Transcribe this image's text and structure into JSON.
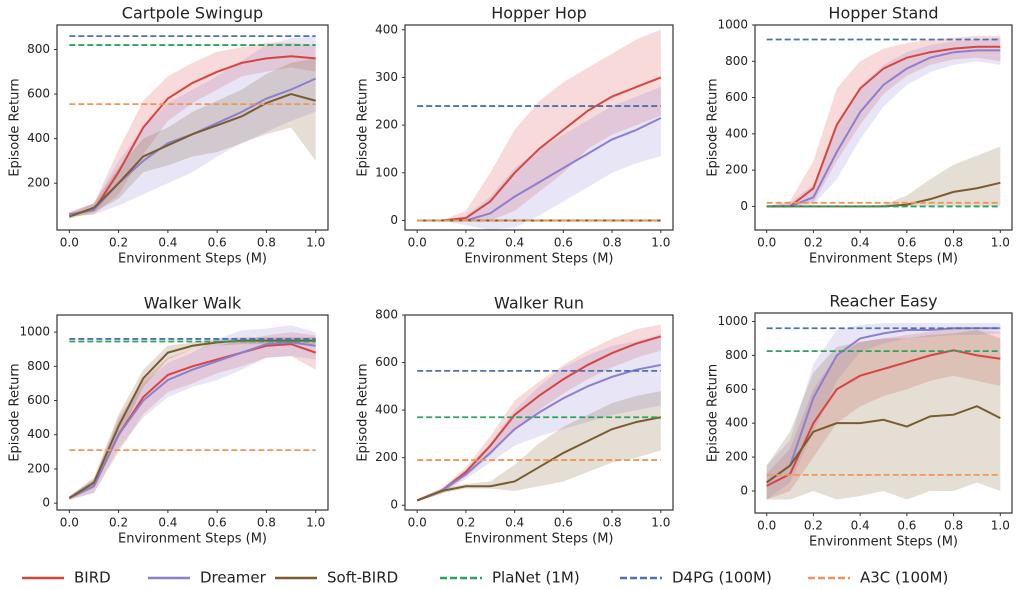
{
  "chart_data": [
    {
      "type": "line",
      "title": "Cartpole Swingup",
      "xlabel": "Environment Steps (M)",
      "ylabel": "Episode Return",
      "x": [
        0,
        0.1,
        0.2,
        0.3,
        0.4,
        0.5,
        0.6,
        0.7,
        0.8,
        0.9,
        1.0
      ],
      "xlim": [
        -0.05,
        1.05
      ],
      "ylim": [
        -10,
        910
      ],
      "xticks": [
        {
          "value": 0,
          "label": "0.0"
        },
        0.2,
        0.4,
        0.6,
        0.8,
        {
          "value": 1,
          "label": "1.0"
        }
      ],
      "yticks": [
        200,
        400,
        600,
        800
      ],
      "series": [
        {
          "values": [
            60,
            80,
            250,
            450,
            580,
            650,
            700,
            740,
            760,
            770,
            760
          ],
          "lower": [
            50,
            60,
            150,
            330,
            480,
            560,
            620,
            680,
            700,
            720,
            700
          ],
          "upper": [
            70,
            110,
            350,
            570,
            680,
            740,
            790,
            810,
            830,
            830,
            820
          ]
        },
        {
          "values": [
            60,
            80,
            200,
            300,
            380,
            420,
            470,
            520,
            580,
            620,
            670
          ],
          "lower": [
            50,
            60,
            100,
            150,
            200,
            250,
            320,
            380,
            430,
            480,
            520
          ],
          "upper": [
            70,
            110,
            300,
            450,
            560,
            620,
            680,
            750,
            820,
            850,
            860
          ]
        },
        {
          "values": [
            50,
            90,
            200,
            320,
            370,
            420,
            460,
            500,
            560,
            600,
            570
          ],
          "lower": [
            40,
            70,
            130,
            250,
            280,
            320,
            340,
            380,
            420,
            450,
            300
          ],
          "upper": [
            60,
            110,
            270,
            400,
            450,
            520,
            570,
            620,
            690,
            740,
            760
          ]
        }
      ],
      "reference_lines": [
        820,
        860,
        555
      ]
    },
    {
      "type": "line",
      "title": "Hopper Hop",
      "xlabel": "Environment Steps (M)",
      "ylabel": "Episode Return",
      "x": [
        0,
        0.1,
        0.2,
        0.3,
        0.4,
        0.5,
        0.6,
        0.7,
        0.8,
        0.9,
        1.0
      ],
      "xlim": [
        -0.05,
        1.05
      ],
      "ylim": [
        -20,
        410
      ],
      "xticks": [
        {
          "value": 0,
          "label": "0.0"
        },
        0.2,
        0.4,
        0.6,
        0.8,
        {
          "value": 1,
          "label": "1.0"
        }
      ],
      "yticks": [
        0,
        100,
        200,
        300,
        400
      ],
      "series": [
        {
          "values": [
            0,
            0,
            5,
            40,
            100,
            150,
            190,
            230,
            260,
            280,
            300
          ],
          "lower": [
            0,
            0,
            0,
            0,
            20,
            60,
            100,
            150,
            180,
            200,
            220
          ],
          "upper": [
            0,
            0,
            20,
            100,
            190,
            250,
            290,
            320,
            350,
            380,
            400
          ]
        },
        {
          "values": [
            0,
            0,
            0,
            15,
            50,
            80,
            110,
            140,
            170,
            190,
            215
          ],
          "lower": [
            0,
            0,
            -10,
            -20,
            -15,
            10,
            40,
            70,
            100,
            120,
            135
          ],
          "upper": [
            0,
            0,
            10,
            50,
            110,
            150,
            180,
            210,
            240,
            260,
            280
          ]
        },
        {
          "values": [
            0,
            0,
            0,
            0,
            0,
            0,
            0,
            0,
            0,
            0,
            0
          ],
          "lower": [
            0,
            0,
            0,
            0,
            0,
            0,
            0,
            0,
            0,
            0,
            0
          ],
          "upper": [
            0,
            0,
            0,
            0,
            0,
            0,
            0,
            0,
            0,
            0,
            0
          ]
        }
      ],
      "reference_lines": [
        0,
        240,
        0
      ]
    },
    {
      "type": "line",
      "title": "Hopper Stand",
      "xlabel": "Environment Steps (M)",
      "ylabel": "Episode Return",
      "x": [
        0,
        0.1,
        0.2,
        0.3,
        0.4,
        0.5,
        0.6,
        0.7,
        0.8,
        0.9,
        1.0
      ],
      "xlim": [
        -0.05,
        1.05
      ],
      "ylim": [
        -130,
        1000
      ],
      "xticks": [
        {
          "value": 0,
          "label": "0.0"
        },
        0.2,
        0.4,
        0.6,
        0.8,
        {
          "value": 1,
          "label": "1.0"
        }
      ],
      "yticks": [
        0,
        200,
        400,
        600,
        800,
        1000
      ],
      "series": [
        {
          "values": [
            0,
            0,
            100,
            450,
            650,
            760,
            820,
            850,
            870,
            880,
            880
          ],
          "lower": [
            0,
            0,
            20,
            250,
            450,
            620,
            720,
            780,
            810,
            820,
            800
          ],
          "upper": [
            0,
            30,
            250,
            650,
            800,
            870,
            900,
            920,
            930,
            940,
            940
          ]
        },
        {
          "values": [
            0,
            0,
            50,
            300,
            520,
            670,
            760,
            820,
            850,
            860,
            860
          ],
          "lower": [
            0,
            0,
            10,
            150,
            370,
            550,
            670,
            740,
            780,
            800,
            780
          ],
          "upper": [
            0,
            20,
            120,
            450,
            660,
            780,
            850,
            890,
            910,
            920,
            930
          ]
        },
        {
          "values": [
            0,
            0,
            0,
            0,
            0,
            0,
            10,
            40,
            80,
            100,
            130
          ],
          "lower": [
            0,
            0,
            0,
            0,
            0,
            0,
            0,
            0,
            0,
            0,
            0
          ],
          "upper": [
            0,
            0,
            0,
            0,
            0,
            10,
            60,
            150,
            230,
            280,
            330
          ]
        }
      ],
      "reference_lines": [
        0,
        920,
        20
      ]
    },
    {
      "type": "line",
      "title": "Walker Walk",
      "xlabel": "Environment Steps (M)",
      "ylabel": "Episode Return",
      "x": [
        0,
        0.1,
        0.2,
        0.3,
        0.4,
        0.5,
        0.6,
        0.7,
        0.8,
        0.9,
        1.0
      ],
      "xlim": [
        -0.05,
        1.05
      ],
      "ylim": [
        -40,
        1100
      ],
      "xticks": [
        {
          "value": 0,
          "label": "0.0"
        },
        0.2,
        0.4,
        0.6,
        0.8,
        {
          "value": 1,
          "label": "1.0"
        }
      ],
      "yticks": [
        0,
        200,
        400,
        600,
        800,
        1000
      ],
      "series": [
        {
          "values": [
            30,
            100,
            400,
            620,
            750,
            800,
            840,
            880,
            920,
            930,
            880
          ],
          "lower": [
            20,
            60,
            300,
            520,
            650,
            700,
            760,
            800,
            850,
            860,
            780
          ],
          "upper": [
            40,
            140,
            500,
            720,
            850,
            900,
            920,
            950,
            980,
            1000,
            980
          ]
        },
        {
          "values": [
            30,
            100,
            400,
            600,
            720,
            780,
            830,
            880,
            930,
            940,
            920
          ],
          "lower": [
            20,
            60,
            320,
            500,
            620,
            680,
            720,
            780,
            850,
            860,
            840
          ],
          "upper": [
            40,
            140,
            480,
            700,
            820,
            880,
            960,
            1010,
            1020,
            1040,
            1000
          ]
        },
        {
          "values": [
            30,
            120,
            450,
            730,
            880,
            920,
            940,
            950,
            950,
            950,
            950
          ],
          "lower": [
            20,
            90,
            380,
            680,
            840,
            900,
            920,
            930,
            930,
            930,
            930
          ],
          "upper": [
            40,
            150,
            520,
            780,
            920,
            940,
            960,
            970,
            970,
            970,
            970
          ]
        }
      ],
      "reference_lines": [
        945,
        960,
        310
      ]
    },
    {
      "type": "line",
      "title": "Walker Run",
      "xlabel": "Environment Steps (M)",
      "ylabel": "Episode Return",
      "x": [
        0,
        0.1,
        0.2,
        0.3,
        0.4,
        0.5,
        0.6,
        0.7,
        0.8,
        0.9,
        1.0
      ],
      "xlim": [
        -0.05,
        1.05
      ],
      "ylim": [
        -20,
        800
      ],
      "xticks": [
        {
          "value": 0,
          "label": "0.0"
        },
        0.2,
        0.4,
        0.6,
        0.8,
        {
          "value": 1,
          "label": "1.0"
        }
      ],
      "yticks": [
        0,
        200,
        400,
        600,
        800
      ],
      "series": [
        {
          "values": [
            20,
            60,
            140,
            250,
            380,
            460,
            530,
            590,
            640,
            680,
            710
          ],
          "lower": [
            15,
            50,
            120,
            210,
            320,
            400,
            470,
            530,
            580,
            620,
            650
          ],
          "upper": [
            25,
            70,
            160,
            290,
            440,
            520,
            590,
            650,
            700,
            740,
            760
          ]
        },
        {
          "values": [
            20,
            60,
            130,
            220,
            320,
            390,
            450,
            500,
            540,
            570,
            590
          ],
          "lower": [
            15,
            50,
            110,
            180,
            250,
            290,
            320,
            350,
            380,
            400,
            420
          ],
          "upper": [
            25,
            70,
            150,
            260,
            400,
            500,
            580,
            630,
            670,
            690,
            720
          ]
        },
        {
          "values": [
            20,
            60,
            80,
            80,
            100,
            160,
            220,
            270,
            320,
            350,
            370
          ],
          "lower": [
            15,
            50,
            70,
            70,
            60,
            80,
            100,
            140,
            180,
            200,
            230
          ],
          "upper": [
            25,
            70,
            90,
            100,
            170,
            260,
            330,
            380,
            430,
            460,
            480
          ]
        }
      ],
      "reference_lines": [
        370,
        565,
        190
      ]
    },
    {
      "type": "line",
      "title": "Reacher Easy",
      "xlabel": "Environment Steps (M)",
      "ylabel": "Episode Return",
      "x": [
        0,
        0.1,
        0.2,
        0.3,
        0.4,
        0.5,
        0.6,
        0.7,
        0.8,
        0.9,
        1.0
      ],
      "xlim": [
        -0.05,
        1.05
      ],
      "ylim": [
        -130,
        1050
      ],
      "xticks": [
        {
          "value": 0,
          "label": "0.0"
        },
        0.2,
        0.4,
        0.6,
        0.8,
        {
          "value": 1,
          "label": "1.0"
        }
      ],
      "yticks": [
        0,
        200,
        400,
        600,
        800,
        1000
      ],
      "series": [
        {
          "values": [
            30,
            100,
            400,
            600,
            680,
            720,
            760,
            800,
            830,
            800,
            780
          ],
          "lower": [
            -50,
            0,
            200,
            400,
            500,
            560,
            600,
            650,
            680,
            650,
            620
          ],
          "upper": [
            100,
            250,
            600,
            800,
            880,
            900,
            920,
            940,
            960,
            950,
            940
          ]
        },
        {
          "values": [
            50,
            150,
            550,
            800,
            900,
            930,
            950,
            950,
            960,
            960,
            960
          ],
          "lower": [
            -50,
            50,
            350,
            650,
            820,
            870,
            900,
            910,
            920,
            920,
            930
          ],
          "upper": [
            150,
            300,
            750,
            950,
            980,
            990,
            990,
            990,
            990,
            990,
            990
          ]
        },
        {
          "values": [
            50,
            150,
            350,
            400,
            400,
            420,
            380,
            440,
            450,
            500,
            430
          ],
          "lower": [
            -50,
            -50,
            0,
            -50,
            -30,
            0,
            -50,
            0,
            0,
            50,
            0
          ],
          "upper": [
            150,
            350,
            700,
            850,
            880,
            900,
            900,
            920,
            930,
            950,
            900
          ]
        }
      ],
      "reference_lines": [
        825,
        960,
        95
      ]
    }
  ],
  "legend": [
    {
      "name": "BIRD",
      "color": "#d64541",
      "dashed": false
    },
    {
      "name": "Dreamer",
      "color": "#8c7fd0",
      "dashed": false
    },
    {
      "name": "Soft-BIRD",
      "color": "#7a5c2e",
      "dashed": false
    },
    {
      "name": "PlaNet (1M)",
      "color": "#2ca25f",
      "dashed": true
    },
    {
      "name": "D4PG (100M)",
      "color": "#4c72b0",
      "dashed": true
    },
    {
      "name": "A3C (100M)",
      "color": "#f0965a",
      "dashed": true
    }
  ]
}
